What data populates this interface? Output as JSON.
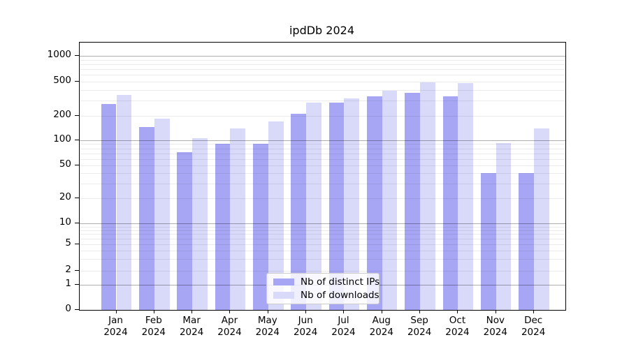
{
  "chart_data": {
    "type": "bar",
    "title": "ipdDb 2024",
    "categories": [
      "Jan",
      "Feb",
      "Mar",
      "Apr",
      "May",
      "Jun",
      "Jul",
      "Aug",
      "Sep",
      "Oct",
      "Nov",
      "Dec"
    ],
    "year_label": "2024",
    "series": [
      {
        "name": "Nb of distinct IPs",
        "color": "#a6a6f5",
        "values": [
          277,
          146,
          72,
          90,
          90,
          213,
          287,
          337,
          369,
          337,
          40,
          40
        ]
      },
      {
        "name": "Nb of downloads",
        "color": "#d9d9fa",
        "values": [
          350,
          185,
          107,
          139,
          170,
          287,
          322,
          394,
          488,
          479,
          93,
          140
        ]
      }
    ],
    "yscale": "symlog",
    "yticks": [
      0,
      1,
      2,
      5,
      10,
      20,
      50,
      100,
      200,
      500,
      1000
    ],
    "ylim": [
      0,
      1400
    ],
    "grid": "both",
    "legend_position": "lower center"
  }
}
